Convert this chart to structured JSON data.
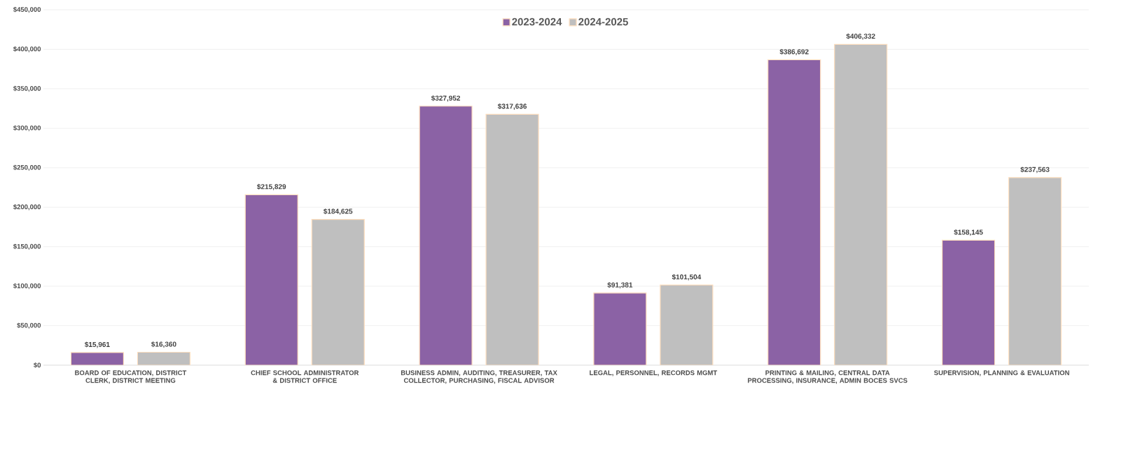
{
  "chart_data": {
    "type": "bar",
    "categories": [
      "BOARD OF EDUCATION, DISTRICT CLERK, DISTRICT MEETING",
      "CHIEF SCHOOL ADMINISTRATOR & DISTRICT OFFICE",
      "BUSINESS ADMIN, AUDITING, TREASURER, TAX COLLECTOR, PURCHASING, FISCAL ADVISOR",
      "LEGAL, PERSONNEL, RECORDS MGMT",
      "PRINTING & MAILING, CENTRAL DATA PROCESSING, INSURANCE, ADMIN BOCES SVCS",
      "SUPERVISION, PLANNING & EVALUATION"
    ],
    "series": [
      {
        "name": "2023-2024",
        "color": "#8b62a5",
        "values": [
          15961,
          215829,
          327952,
          91381,
          386692,
          158145
        ],
        "value_labels": [
          "$15,961",
          "$215,829",
          "$327,952",
          "$91,381",
          "$386,692",
          "$158,145"
        ]
      },
      {
        "name": "2024-2025",
        "color": "#bfbfbf",
        "values": [
          16360,
          184625,
          317636,
          101504,
          406332,
          237563
        ],
        "value_labels": [
          "$16,360",
          "$184,625",
          "$317,636",
          "$101,504",
          "$406,332",
          "$237,563"
        ]
      }
    ],
    "ylim": [
      0,
      450000
    ],
    "yticks": [
      {
        "value": 0,
        "label": "$0"
      },
      {
        "value": 50000,
        "label": "$50,000"
      },
      {
        "value": 100000,
        "label": "$100,000"
      },
      {
        "value": 150000,
        "label": "$150,000"
      },
      {
        "value": 200000,
        "label": "$200,000"
      },
      {
        "value": 250000,
        "label": "$250,000"
      },
      {
        "value": 300000,
        "label": "$300,000"
      },
      {
        "value": 350000,
        "label": "$350,000"
      },
      {
        "value": 400000,
        "label": "$400,000"
      },
      {
        "value": 450000,
        "label": "$450,000"
      }
    ],
    "grid": "y",
    "legend": "top"
  }
}
